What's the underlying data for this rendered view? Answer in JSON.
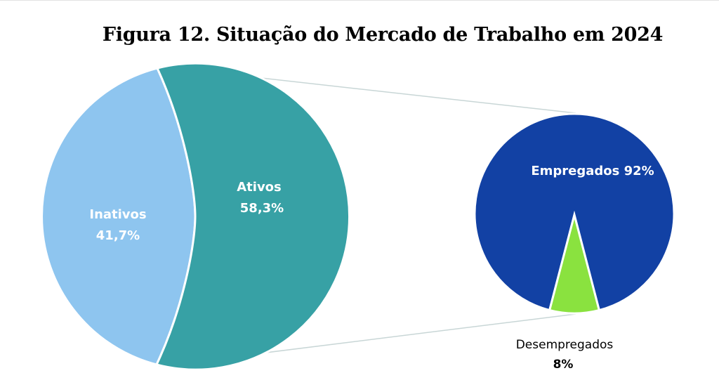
{
  "chart_data": [
    {
      "type": "pie",
      "title": "Figura 12. Situação do Mercado de Trabalho em 2024",
      "categories": [
        "Inativos",
        "Ativos"
      ],
      "values": [
        41.7,
        58.3
      ],
      "value_labels": [
        "41,7%",
        "58,3%"
      ],
      "colors": [
        "#8ec5ef",
        "#37a1a5"
      ]
    },
    {
      "type": "pie",
      "categories": [
        "Empregados",
        "Desempregados"
      ],
      "values": [
        92,
        8
      ],
      "value_labels": [
        "92%",
        "8%"
      ],
      "colors": [
        "#1241a4",
        "#8ae23f"
      ]
    }
  ]
}
